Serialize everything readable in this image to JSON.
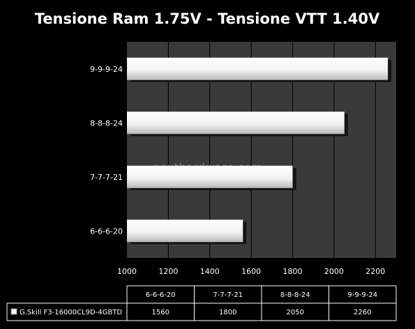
{
  "chart_data": {
    "type": "bar",
    "orientation": "horizontal",
    "title": "Tensione Ram 1.75V - Tensione VTT 1.40V",
    "categories": [
      "6-6-6-20",
      "7-7-7-21",
      "8-8-8-24",
      "9-9-9-24"
    ],
    "series": [
      {
        "name": "G.Skill F3-16000CL9D-4GBTD",
        "values": [
          1560,
          1800,
          2050,
          2260
        ]
      }
    ],
    "xlim": [
      1000,
      2300
    ],
    "xticks": [
      "1000",
      "1200",
      "1400",
      "1600",
      "1800",
      "2000",
      "2200"
    ],
    "grid": true,
    "legend": "table-bottom",
    "table": {
      "headers": [
        "6-6-6-20",
        "7-7-7-21",
        "8-8-8-24",
        "9-9-9-24"
      ],
      "row_label": "G.Skill F3-16000CL9D-4GBTD",
      "values": [
        "1560",
        "1800",
        "2050",
        "2260"
      ]
    },
    "watermark": "nexthardware.com",
    "colors": {
      "background": "#000000",
      "plot": "#3a3a3a",
      "bar": "#ffffff",
      "grid": "#000000"
    }
  }
}
